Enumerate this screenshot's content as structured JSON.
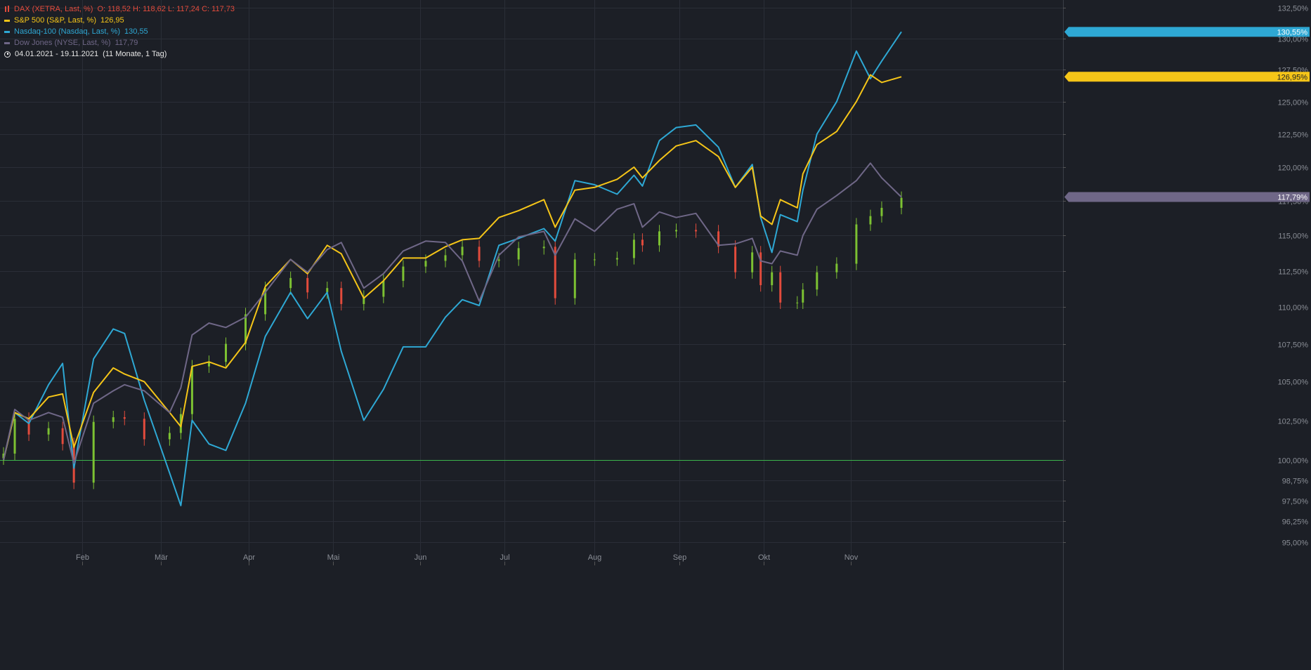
{
  "legend": {
    "dax": {
      "name": "DAX (XETRA, Last, %)",
      "ohlc": "O: 118,52  H: 118,62  L: 117,24  C: 117,73",
      "color": "#e24b3c"
    },
    "sp500": {
      "name": "S&P 500 (S&P, Last, %)",
      "value": "126,95",
      "color": "#f5c518"
    },
    "nasdaq": {
      "name": "Nasdaq-100 (Nasdaq, Last, %)",
      "value": "130,55",
      "color": "#2ea8d4"
    },
    "dow": {
      "name": "Dow Jones (NYSE, Last, %)",
      "value": "117,79",
      "color": "#6f6787"
    },
    "period": {
      "range": "04.01.2021 - 19.11.2021",
      "duration": "(11 Monate, 1 Tag)"
    }
  },
  "colors": {
    "background": "#1c1f26",
    "grid": "#2a2e37",
    "axis_text": "#8a8e96",
    "baseline": "#3cb44b",
    "candle_up": "#7cc132",
    "candle_down": "#e24b3c"
  },
  "chart_data": {
    "type": "line",
    "x_range": [
      "2021-01-04",
      "2021-11-19"
    ],
    "x_tick_labels": [
      "Feb",
      "Mär",
      "Apr",
      "Mai",
      "Jun",
      "Jul",
      "Aug",
      "Sep",
      "Okt",
      "Nov"
    ],
    "x_ticks": [
      {
        "label": "Feb",
        "date": "2021-02-01"
      },
      {
        "label": "Mär",
        "date": "2021-03-01"
      },
      {
        "label": "Apr",
        "date": "2021-04-01"
      },
      {
        "label": "Mai",
        "date": "2021-05-01"
      },
      {
        "label": "Jun",
        "date": "2021-06-01"
      },
      {
        "label": "Jul",
        "date": "2021-07-01"
      },
      {
        "label": "Aug",
        "date": "2021-08-02"
      },
      {
        "label": "Sep",
        "date": "2021-09-01"
      },
      {
        "label": "Okt",
        "date": "2021-10-01"
      },
      {
        "label": "Nov",
        "date": "2021-11-01"
      }
    ],
    "y_ticks": [
      {
        "label": "132,50%",
        "value": 132.5
      },
      {
        "label": "130,00%",
        "value": 130.0
      },
      {
        "label": "127,50%",
        "value": 127.5
      },
      {
        "label": "125,00%",
        "value": 125.0
      },
      {
        "label": "122,50%",
        "value": 122.5
      },
      {
        "label": "120,00%",
        "value": 120.0
      },
      {
        "label": "117,50%",
        "value": 117.5
      },
      {
        "label": "115,00%",
        "value": 115.0
      },
      {
        "label": "112,50%",
        "value": 112.5
      },
      {
        "label": "110,00%",
        "value": 110.0
      },
      {
        "label": "107,50%",
        "value": 107.5
      },
      {
        "label": "105,00%",
        "value": 105.0
      },
      {
        "label": "102,50%",
        "value": 102.5
      },
      {
        "label": "100,00%",
        "value": 100.0
      },
      {
        "label": "98,75%",
        "value": 98.75
      },
      {
        "label": "97,50%",
        "value": 97.5
      },
      {
        "label": "96,25%",
        "value": 96.25
      },
      {
        "label": "95,00%",
        "value": 95.0
      }
    ],
    "baseline": 100,
    "grid": true,
    "y_scale": "log",
    "series": [
      {
        "name": "Nasdaq-100 (Nasdaq, Last, %)",
        "color": "#2ea8d4",
        "last_label": "130,55%",
        "points": [
          [
            "2021-01-04",
            100.0
          ],
          [
            "2021-01-08",
            103.0
          ],
          [
            "2021-01-13",
            102.3
          ],
          [
            "2021-01-20",
            104.8
          ],
          [
            "2021-01-25",
            106.2
          ],
          [
            "2021-01-29",
            99.5
          ],
          [
            "2021-02-05",
            106.5
          ],
          [
            "2021-02-12",
            108.5
          ],
          [
            "2021-02-16",
            108.2
          ],
          [
            "2021-02-23",
            103.8
          ],
          [
            "2021-03-04",
            99.2
          ],
          [
            "2021-03-08",
            97.2
          ],
          [
            "2021-03-12",
            102.5
          ],
          [
            "2021-03-18",
            101.0
          ],
          [
            "2021-03-24",
            100.6
          ],
          [
            "2021-03-31",
            103.6
          ],
          [
            "2021-04-07",
            108.0
          ],
          [
            "2021-04-16",
            111.0
          ],
          [
            "2021-04-22",
            109.2
          ],
          [
            "2021-04-29",
            111.0
          ],
          [
            "2021-05-04",
            107.0
          ],
          [
            "2021-05-12",
            102.5
          ],
          [
            "2021-05-19",
            104.5
          ],
          [
            "2021-05-26",
            107.3
          ],
          [
            "2021-06-03",
            107.3
          ],
          [
            "2021-06-10",
            109.3
          ],
          [
            "2021-06-16",
            110.5
          ],
          [
            "2021-06-22",
            110.1
          ],
          [
            "2021-06-29",
            114.3
          ],
          [
            "2021-07-06",
            114.8
          ],
          [
            "2021-07-15",
            115.5
          ],
          [
            "2021-07-19",
            114.6
          ],
          [
            "2021-07-26",
            119.0
          ],
          [
            "2021-08-02",
            118.7
          ],
          [
            "2021-08-10",
            118.0
          ],
          [
            "2021-08-16",
            119.4
          ],
          [
            "2021-08-19",
            118.6
          ],
          [
            "2021-08-25",
            122.0
          ],
          [
            "2021-08-31",
            123.0
          ],
          [
            "2021-09-07",
            123.2
          ],
          [
            "2021-09-15",
            121.5
          ],
          [
            "2021-09-21",
            118.5
          ],
          [
            "2021-09-27",
            120.2
          ],
          [
            "2021-09-30",
            116.3
          ],
          [
            "2021-10-04",
            113.8
          ],
          [
            "2021-10-07",
            116.5
          ],
          [
            "2021-10-13",
            116.0
          ],
          [
            "2021-10-15",
            118.3
          ],
          [
            "2021-10-20",
            122.5
          ],
          [
            "2021-10-27",
            125.0
          ],
          [
            "2021-11-03",
            129.0
          ],
          [
            "2021-11-08",
            126.8
          ],
          [
            "2021-11-12",
            128.2
          ],
          [
            "2021-11-19",
            130.55
          ]
        ]
      },
      {
        "name": "S&P 500 (S&P, Last, %)",
        "color": "#f5c518",
        "last_label": "126,95%",
        "points": [
          [
            "2021-01-04",
            100.0
          ],
          [
            "2021-01-08",
            103.0
          ],
          [
            "2021-01-13",
            102.6
          ],
          [
            "2021-01-20",
            104.0
          ],
          [
            "2021-01-25",
            104.2
          ],
          [
            "2021-01-29",
            100.8
          ],
          [
            "2021-02-05",
            104.3
          ],
          [
            "2021-02-12",
            105.9
          ],
          [
            "2021-02-16",
            105.5
          ],
          [
            "2021-02-23",
            105.0
          ],
          [
            "2021-03-04",
            103.0
          ],
          [
            "2021-03-08",
            102.1
          ],
          [
            "2021-03-12",
            106.0
          ],
          [
            "2021-03-18",
            106.3
          ],
          [
            "2021-03-24",
            105.9
          ],
          [
            "2021-03-31",
            107.6
          ],
          [
            "2021-04-07",
            111.4
          ],
          [
            "2021-04-16",
            113.3
          ],
          [
            "2021-04-22",
            112.3
          ],
          [
            "2021-04-29",
            114.3
          ],
          [
            "2021-05-04",
            113.7
          ],
          [
            "2021-05-12",
            110.6
          ],
          [
            "2021-05-19",
            111.8
          ],
          [
            "2021-05-26",
            113.4
          ],
          [
            "2021-06-03",
            113.4
          ],
          [
            "2021-06-10",
            114.2
          ],
          [
            "2021-06-16",
            114.7
          ],
          [
            "2021-06-22",
            114.8
          ],
          [
            "2021-06-29",
            116.3
          ],
          [
            "2021-07-06",
            116.8
          ],
          [
            "2021-07-15",
            117.6
          ],
          [
            "2021-07-19",
            115.6
          ],
          [
            "2021-07-26",
            118.3
          ],
          [
            "2021-08-02",
            118.5
          ],
          [
            "2021-08-10",
            119.1
          ],
          [
            "2021-08-16",
            120.0
          ],
          [
            "2021-08-19",
            119.2
          ],
          [
            "2021-08-25",
            120.5
          ],
          [
            "2021-08-31",
            121.6
          ],
          [
            "2021-09-07",
            122.0
          ],
          [
            "2021-09-15",
            120.8
          ],
          [
            "2021-09-21",
            118.5
          ],
          [
            "2021-09-27",
            120.0
          ],
          [
            "2021-09-30",
            116.4
          ],
          [
            "2021-10-04",
            115.8
          ],
          [
            "2021-10-07",
            117.6
          ],
          [
            "2021-10-13",
            117.0
          ],
          [
            "2021-10-15",
            119.5
          ],
          [
            "2021-10-20",
            121.7
          ],
          [
            "2021-10-27",
            122.7
          ],
          [
            "2021-11-03",
            125.0
          ],
          [
            "2021-11-08",
            127.1
          ],
          [
            "2021-11-12",
            126.5
          ],
          [
            "2021-11-19",
            126.95
          ]
        ]
      },
      {
        "name": "Dow Jones (NYSE, Last, %)",
        "color": "#6f6787",
        "last_label": "117,79%",
        "points": [
          [
            "2021-01-04",
            100.0
          ],
          [
            "2021-01-08",
            103.2
          ],
          [
            "2021-01-13",
            102.5
          ],
          [
            "2021-01-20",
            103.0
          ],
          [
            "2021-01-25",
            102.7
          ],
          [
            "2021-01-29",
            99.8
          ],
          [
            "2021-02-05",
            103.6
          ],
          [
            "2021-02-12",
            104.4
          ],
          [
            "2021-02-16",
            104.8
          ],
          [
            "2021-02-23",
            104.4
          ],
          [
            "2021-03-04",
            103.0
          ],
          [
            "2021-03-08",
            104.6
          ],
          [
            "2021-03-12",
            108.1
          ],
          [
            "2021-03-18",
            108.9
          ],
          [
            "2021-03-24",
            108.6
          ],
          [
            "2021-03-31",
            109.3
          ],
          [
            "2021-04-07",
            111.0
          ],
          [
            "2021-04-16",
            113.3
          ],
          [
            "2021-04-22",
            112.4
          ],
          [
            "2021-04-29",
            114.0
          ],
          [
            "2021-05-04",
            114.5
          ],
          [
            "2021-05-12",
            111.3
          ],
          [
            "2021-05-19",
            112.3
          ],
          [
            "2021-05-26",
            113.9
          ],
          [
            "2021-06-03",
            114.6
          ],
          [
            "2021-06-10",
            114.5
          ],
          [
            "2021-06-16",
            113.2
          ],
          [
            "2021-06-22",
            110.4
          ],
          [
            "2021-06-29",
            113.6
          ],
          [
            "2021-07-06",
            114.9
          ],
          [
            "2021-07-15",
            115.3
          ],
          [
            "2021-07-19",
            113.6
          ],
          [
            "2021-07-26",
            116.2
          ],
          [
            "2021-08-02",
            115.3
          ],
          [
            "2021-08-10",
            116.9
          ],
          [
            "2021-08-16",
            117.3
          ],
          [
            "2021-08-19",
            115.6
          ],
          [
            "2021-08-25",
            116.7
          ],
          [
            "2021-08-31",
            116.3
          ],
          [
            "2021-09-07",
            116.6
          ],
          [
            "2021-09-15",
            114.3
          ],
          [
            "2021-09-21",
            114.4
          ],
          [
            "2021-09-27",
            114.8
          ],
          [
            "2021-09-30",
            113.2
          ],
          [
            "2021-10-04",
            113.0
          ],
          [
            "2021-10-07",
            113.9
          ],
          [
            "2021-10-13",
            113.6
          ],
          [
            "2021-10-15",
            115.0
          ],
          [
            "2021-10-20",
            116.9
          ],
          [
            "2021-10-27",
            117.9
          ],
          [
            "2021-11-03",
            119.0
          ],
          [
            "2021-11-08",
            120.3
          ],
          [
            "2021-11-12",
            119.2
          ],
          [
            "2021-11-19",
            117.79
          ]
        ]
      },
      {
        "name": "DAX (XETRA, Last, %)",
        "type": "candlestick",
        "up_color": "#7cc132",
        "down_color": "#e24b3c",
        "points": [
          [
            "2021-01-04",
            100.4
          ],
          [
            "2021-01-08",
            102.6
          ],
          [
            "2021-01-13",
            101.6
          ],
          [
            "2021-01-20",
            102.0
          ],
          [
            "2021-01-25",
            101.0
          ],
          [
            "2021-01-29",
            98.6
          ],
          [
            "2021-02-05",
            102.4
          ],
          [
            "2021-02-12",
            102.7
          ],
          [
            "2021-02-16",
            102.6
          ],
          [
            "2021-02-23",
            101.3
          ],
          [
            "2021-03-04",
            101.7
          ],
          [
            "2021-03-08",
            102.9
          ],
          [
            "2021-03-12",
            106.0
          ],
          [
            "2021-03-18",
            106.3
          ],
          [
            "2021-03-24",
            107.5
          ],
          [
            "2021-03-31",
            109.5
          ],
          [
            "2021-04-07",
            111.3
          ],
          [
            "2021-04-16",
            112.0
          ],
          [
            "2021-04-22",
            111.0
          ],
          [
            "2021-04-29",
            111.3
          ],
          [
            "2021-05-04",
            110.2
          ],
          [
            "2021-05-12",
            110.7
          ],
          [
            "2021-05-19",
            111.8
          ],
          [
            "2021-05-26",
            112.8
          ],
          [
            "2021-06-03",
            113.2
          ],
          [
            "2021-06-10",
            113.6
          ],
          [
            "2021-06-16",
            114.2
          ],
          [
            "2021-06-22",
            113.2
          ],
          [
            "2021-06-29",
            113.3
          ],
          [
            "2021-07-06",
            114.1
          ],
          [
            "2021-07-15",
            114.2
          ],
          [
            "2021-07-19",
            110.6
          ],
          [
            "2021-07-26",
            113.3
          ],
          [
            "2021-08-02",
            113.3
          ],
          [
            "2021-08-10",
            113.4
          ],
          [
            "2021-08-16",
            114.7
          ],
          [
            "2021-08-19",
            114.3
          ],
          [
            "2021-08-25",
            115.3
          ],
          [
            "2021-08-31",
            115.4
          ],
          [
            "2021-09-07",
            115.3
          ],
          [
            "2021-09-15",
            114.2
          ],
          [
            "2021-09-21",
            112.4
          ],
          [
            "2021-09-27",
            113.8
          ],
          [
            "2021-09-30",
            111.5
          ],
          [
            "2021-10-04",
            112.4
          ],
          [
            "2021-10-07",
            110.3
          ],
          [
            "2021-10-13",
            110.3
          ],
          [
            "2021-10-15",
            111.2
          ],
          [
            "2021-10-20",
            112.4
          ],
          [
            "2021-10-27",
            113.0
          ],
          [
            "2021-11-03",
            115.8
          ],
          [
            "2021-11-08",
            116.4
          ],
          [
            "2021-11-12",
            117.0
          ],
          [
            "2021-11-19",
            117.73
          ]
        ]
      }
    ]
  }
}
